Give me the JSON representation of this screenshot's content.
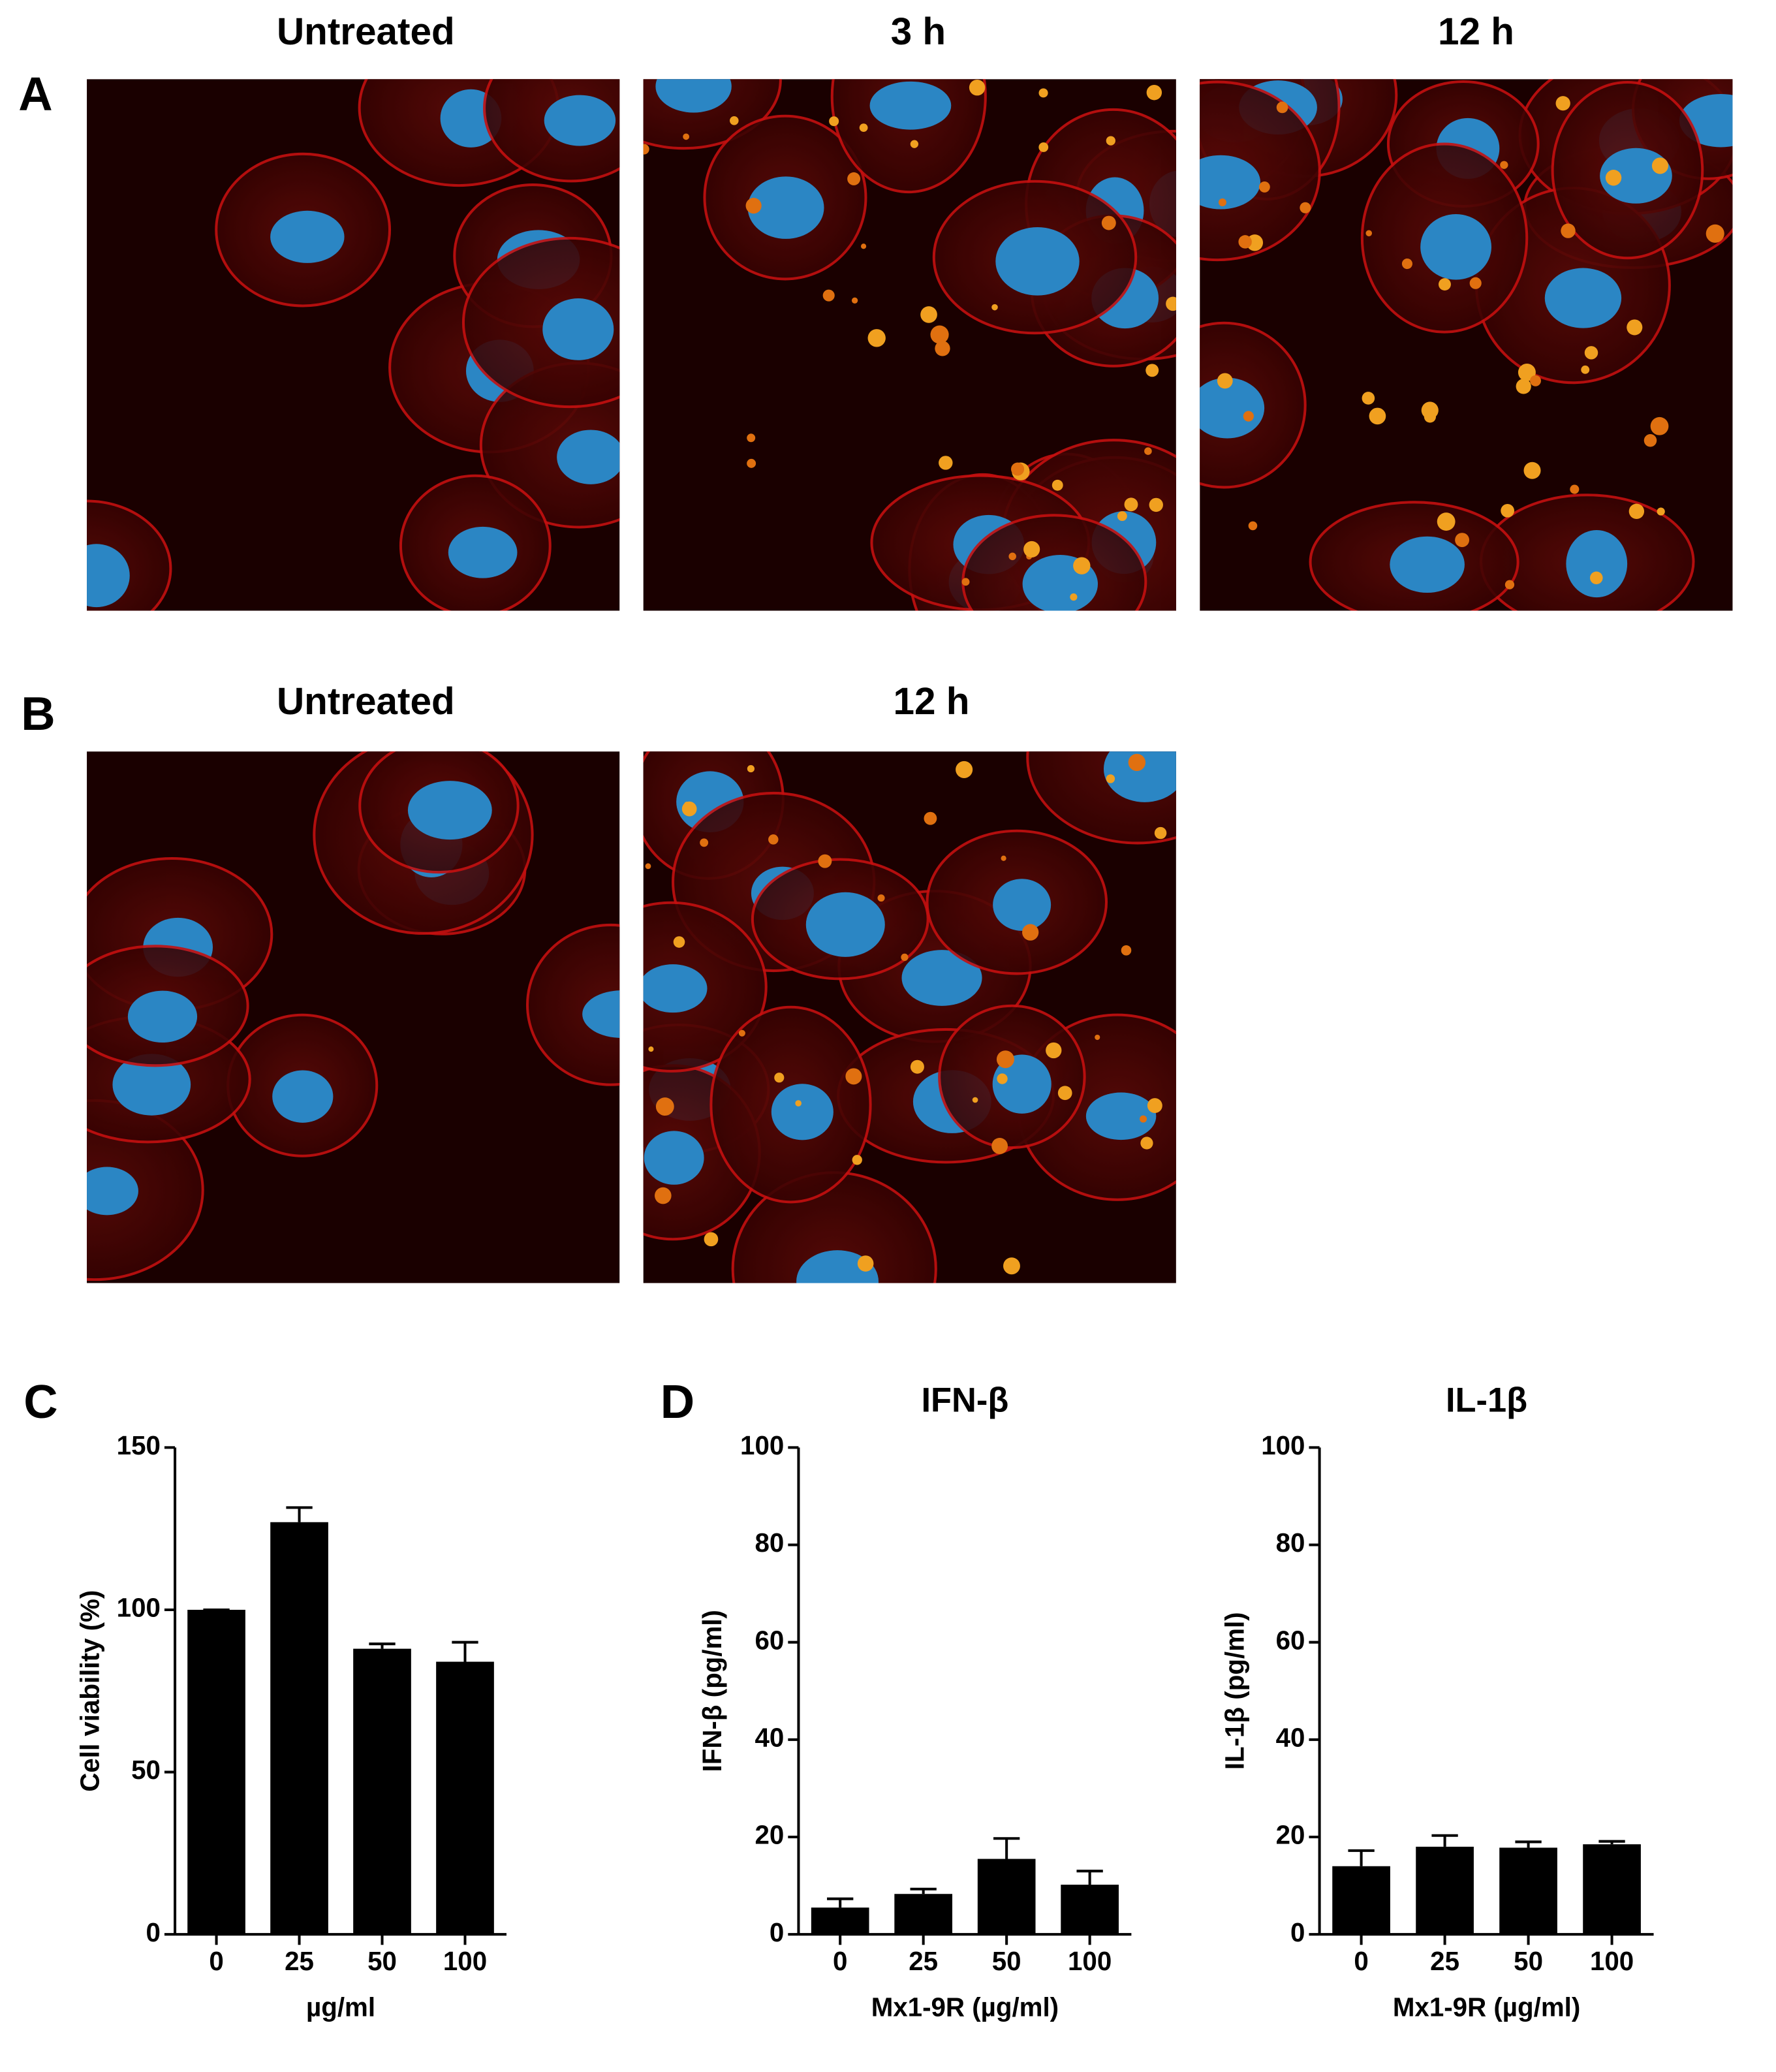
{
  "figure": {
    "panel_labels": [
      "A",
      "B",
      "C",
      "D"
    ],
    "row_a_titles": [
      "Untreated",
      "3 h",
      "12 h"
    ],
    "row_b_titles": [
      "Untreated",
      "12 h"
    ]
  },
  "chart_data": [
    {
      "type": "bar",
      "categories": [
        "0",
        "25",
        "50",
        "100"
      ],
      "values": [
        100,
        127,
        88,
        84
      ],
      "errors": [
        0,
        4.5,
        1.5,
        6
      ],
      "color": "#000000",
      "ylim": [
        0,
        150
      ],
      "yticks": [
        0,
        50,
        100,
        150
      ],
      "y_label": "Cell viability (%)",
      "x_label": "µg/ml"
    },
    {
      "type": "bar",
      "title": "IFN-β",
      "categories": [
        "0",
        "25",
        "50",
        "100"
      ],
      "values": [
        5.5,
        8.3,
        15.5,
        10.2
      ],
      "errors": [
        1.8,
        1.0,
        4.2,
        2.8
      ],
      "color": "#000000",
      "ylim": [
        0,
        100
      ],
      "yticks": [
        0,
        20,
        40,
        60,
        80,
        100
      ],
      "y_label": "IFN-β (pg/ml)",
      "x_label": "Mx1-9R (µg/ml)"
    },
    {
      "type": "bar",
      "title": "IL-1β",
      "categories": [
        "0",
        "25",
        "50",
        "100"
      ],
      "values": [
        14,
        18,
        17.8,
        18.5
      ],
      "errors": [
        3.2,
        2.3,
        1.2,
        0.6
      ],
      "color": "#000000",
      "ylim": [
        0,
        100
      ],
      "yticks": [
        0,
        20,
        40,
        60,
        80,
        100
      ],
      "y_label": "IL-1β (pg/ml)",
      "x_label": "Mx1-9R (µg/ml)"
    }
  ]
}
